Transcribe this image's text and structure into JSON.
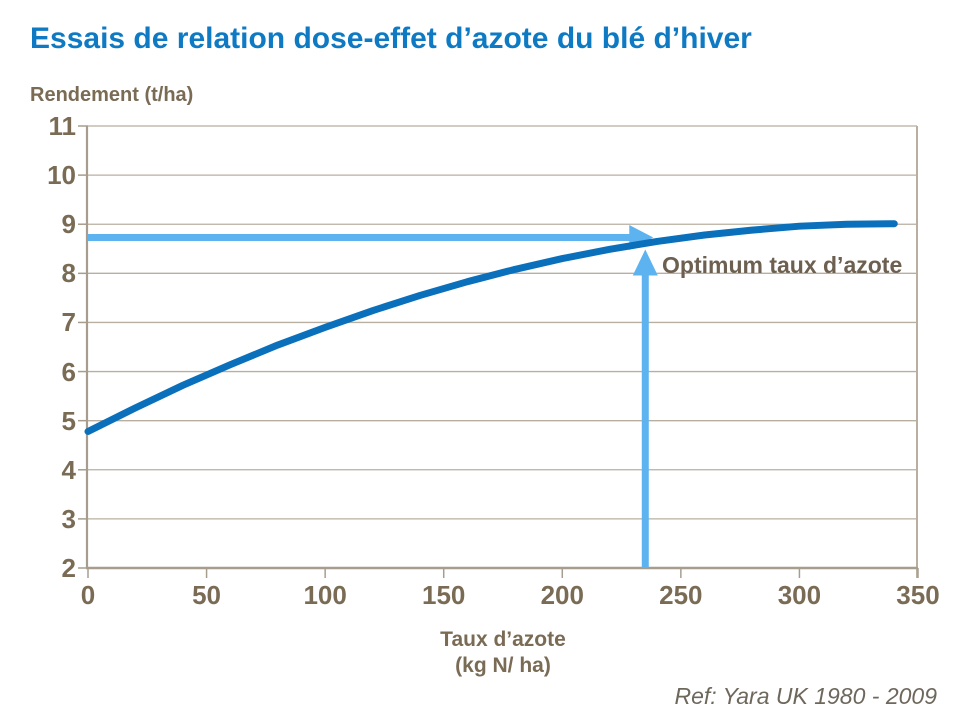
{
  "title": "Essais de relation dose-effet d’azote du blé d’hiver",
  "footer": {
    "reference": "Ref: Yara UK 1980 - 2009"
  },
  "colors": {
    "title_blue": "#0e7ac4",
    "curve_blue": "#0b70bb",
    "arrow_light_blue": "#5cb3f0",
    "label_brown": "#7a6b55",
    "annotation_brown": "#6d6050",
    "reference_gray": "#6e675c",
    "gridline": "#b8afa1",
    "axis": "#a79d8e",
    "background": "#ffffff"
  },
  "chart_data": {
    "type": "line",
    "title": "Essais de relation dose-effet d’azote du blé d’hiver",
    "ylabel": "Rendement (t/ha)",
    "xlabel": "Taux d’azote (kg N/ ha)",
    "xlabel_line1": "Taux d’azote",
    "xlabel_line2": "(kg N/ ha)",
    "xlim": [
      0,
      350
    ],
    "ylim": [
      2,
      11
    ],
    "x_ticks": [
      0,
      50,
      100,
      150,
      200,
      250,
      300,
      350
    ],
    "y_ticks": [
      11,
      10,
      9,
      8,
      7,
      6,
      5,
      4,
      3,
      2
    ],
    "grid": "horizontal",
    "legend": "none",
    "series": [
      {
        "name": "Rendement (t/ha)",
        "x": [
          0,
          20,
          40,
          60,
          80,
          100,
          120,
          140,
          160,
          180,
          200,
          220,
          240,
          260,
          280,
          300,
          320,
          340
        ],
        "y": [
          4.78,
          5.26,
          5.72,
          6.14,
          6.54,
          6.9,
          7.24,
          7.55,
          7.83,
          8.08,
          8.3,
          8.49,
          8.65,
          8.78,
          8.88,
          8.96,
          9.0,
          9.01
        ]
      }
    ],
    "annotation": {
      "text": "Optimum taux d’azote",
      "optimum_x": 235,
      "optimum_yield": 8.73
    }
  }
}
